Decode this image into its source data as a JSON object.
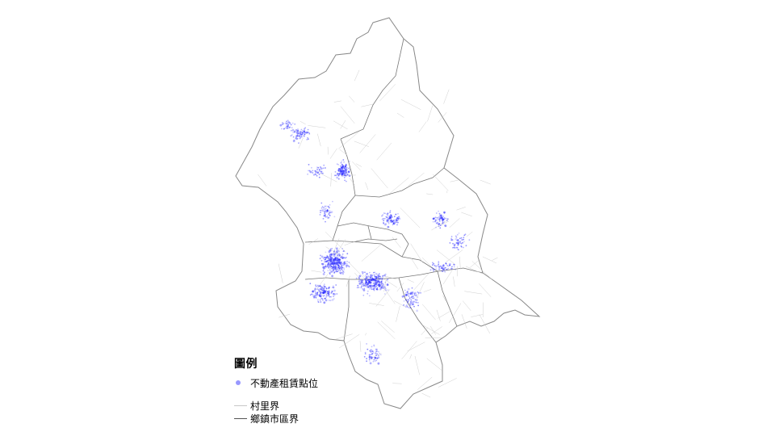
{
  "colors": {
    "point": "#1a1aff",
    "village_boundary": "#c8c8c8",
    "district_boundary": "#555555"
  },
  "legend": {
    "title": "圖例",
    "items": [
      {
        "label": "不動產租賃點位",
        "symbol": "point"
      },
      {
        "label": "村里界",
        "symbol": "village_boundary"
      },
      {
        "label": "鄉鎮市區界",
        "symbol": "district_boundary"
      }
    ]
  }
}
